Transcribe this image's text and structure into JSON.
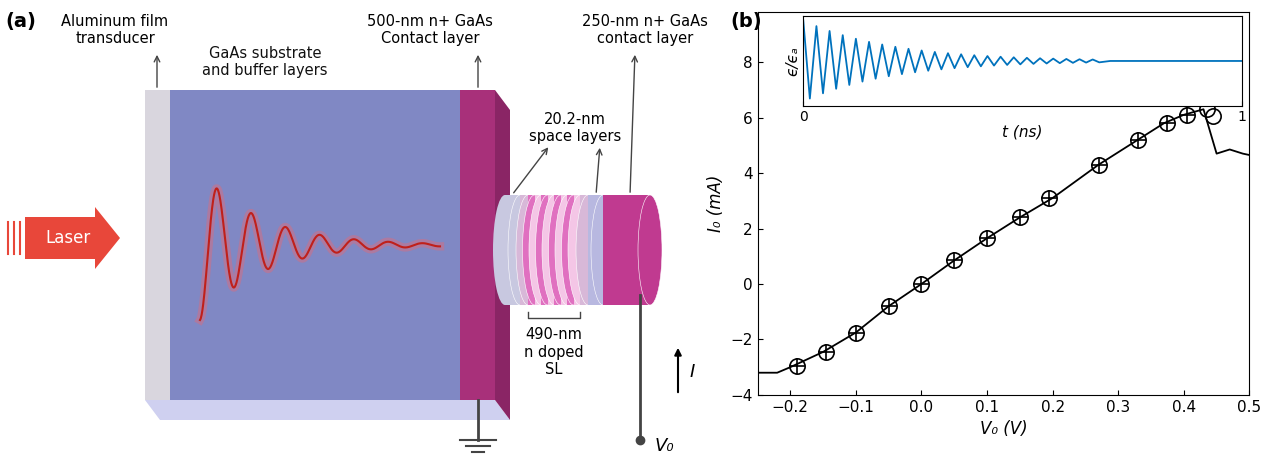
{
  "panel_labels": [
    "(a)",
    "(b)"
  ],
  "diagram": {
    "laser": "Laser",
    "transducer": "Aluminum film\ntransducer",
    "substrate": "GaAs substrate\nand buffer layers",
    "bottom_contact": "500-nm n+ GaAs\nContact layer",
    "spacers": "20.2-nm\nspace layers",
    "superlattice": "490-nm\nn doped\nSL",
    "top_contact": "250-nm n+ GaAs\ncontact layer",
    "current": "I",
    "voltage": "V₀"
  },
  "chart_data": [
    {
      "type": "line",
      "xlabel": "V₀ (V)",
      "ylabel": "I₀ (mA)",
      "xlim": [
        -0.25,
        0.5
      ],
      "xticks": [
        {
          "value": -0.2,
          "label": "−0.2"
        },
        {
          "value": -0.1,
          "label": "−0.1"
        },
        0.0,
        0.1,
        0.2,
        0.3,
        0.4,
        0.5
      ],
      "ylim": [
        -4,
        9.8
      ],
      "yticks": [
        {
          "value": -4,
          "label": "−4"
        },
        {
          "value": -2,
          "label": "−2"
        },
        0,
        2,
        4,
        6,
        8
      ],
      "series": [
        {
          "type": "line",
          "color": "#000000",
          "x": [
            -0.25,
            -0.22,
            -0.2,
            -0.15,
            -0.1,
            -0.05,
            0.0,
            0.05,
            0.1,
            0.15,
            0.2,
            0.27,
            0.33,
            0.37,
            0.4,
            0.43,
            0.45,
            0.47,
            0.49,
            0.5
          ],
          "values": [
            -3.2,
            -3.2,
            -3.0,
            -2.45,
            -1.75,
            -0.8,
            0.0,
            0.85,
            1.65,
            2.4,
            3.1,
            4.3,
            5.2,
            5.8,
            6.1,
            6.3,
            4.7,
            4.85,
            4.7,
            4.65
          ]
        },
        {
          "type": "scatter",
          "marker": "circle_plus",
          "color": "#000000",
          "x": [
            -0.19,
            -0.145,
            -0.1,
            -0.05,
            0.0,
            0.05,
            0.1,
            0.15,
            0.195,
            0.27,
            0.33,
            0.375,
            0.405
          ],
          "values": [
            -2.95,
            -2.45,
            -1.75,
            -0.8,
            0.0,
            0.85,
            1.65,
            2.4,
            3.1,
            4.3,
            5.2,
            5.8,
            6.1
          ]
        },
        {
          "type": "scatter",
          "marker": "circle",
          "color": "#000000",
          "x": [
            0.435,
            0.445
          ],
          "values": [
            6.3,
            6.05
          ]
        }
      ]
    },
    {
      "type": "line",
      "xlabel": "t (ns)",
      "ylabel": "ϵ/ϵₐ",
      "xlim": [
        0,
        1
      ],
      "xticks": [
        0,
        1
      ],
      "ylim": [
        -1.1,
        1.1
      ],
      "yticks": [],
      "tick_labels": "x",
      "series": [
        {
          "color": "#0072bd",
          "x": [
            0.0,
            0.015,
            0.03,
            0.045,
            0.06,
            0.075,
            0.09,
            0.105,
            0.12,
            0.135,
            0.15,
            0.165,
            0.18,
            0.195,
            0.21,
            0.225,
            0.24,
            0.255,
            0.27,
            0.285,
            0.3,
            0.315,
            0.33,
            0.345,
            0.36,
            0.375,
            0.39,
            0.405,
            0.42,
            0.435,
            0.45,
            0.465,
            0.48,
            0.495,
            0.51,
            0.525,
            0.54,
            0.555,
            0.57,
            0.585,
            0.6,
            0.615,
            0.63,
            0.645,
            0.66,
            0.675,
            0.7,
            1.0
          ],
          "values": [
            1.0,
            -0.928,
            0.861,
            -0.799,
            0.741,
            -0.687,
            0.638,
            -0.592,
            0.549,
            -0.509,
            0.472,
            -0.438,
            0.407,
            -0.377,
            0.35,
            -0.325,
            0.301,
            -0.279,
            0.259,
            -0.241,
            0.223,
            -0.207,
            0.192,
            -0.178,
            0.165,
            -0.153,
            0.142,
            -0.132,
            0.122,
            -0.114,
            0.105,
            -0.098,
            0.091,
            -0.084,
            0.078,
            -0.072,
            0.067,
            -0.062,
            0.058,
            -0.054,
            0.05,
            -0.046,
            0.043,
            -0.04,
            0.037,
            -0.034,
            0.0,
            0.0
          ]
        }
      ]
    }
  ]
}
